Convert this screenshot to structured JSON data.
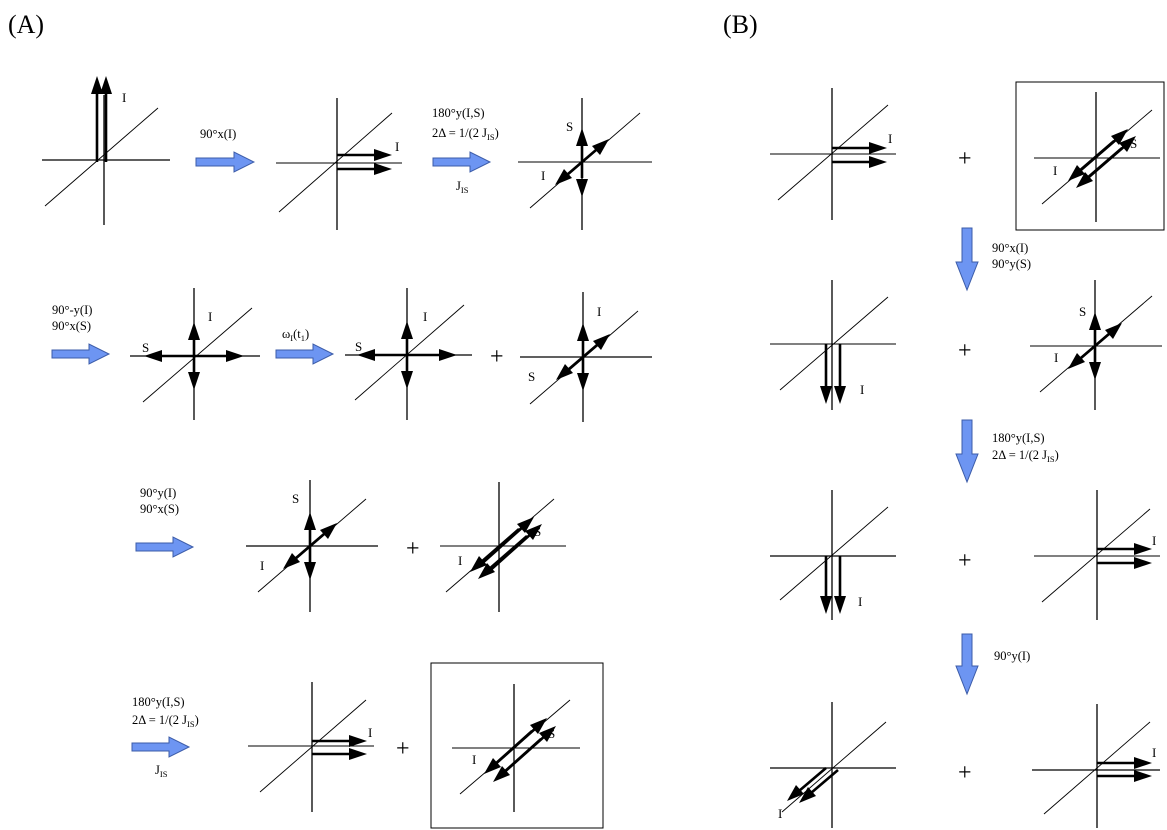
{
  "panels": {
    "a": "(A)",
    "b": "(B)"
  },
  "labels": {
    "i": "I",
    "s": "S",
    "plus": "+"
  },
  "ops": {
    "x90_i": "90°x(I)",
    "y180_is": "180°y(I,S)",
    "delay": "2Δ = 1/(2 J",
    "delay_sub": "IS",
    "delay_close": ")",
    "j": "J",
    "j_sub": "IS",
    "my90_i": "90°-y(I)",
    "x90_s": "90°x(S)",
    "omega": "ω",
    "omega_sub": "I",
    "omega_arg": "(t",
    "omega_arg_sub": "1",
    "omega_close": ")",
    "y90_i": "90°y(I)",
    "y90_s": "90°y(S)"
  },
  "colors": {
    "arrow_fill": "#6d95f2",
    "arrow_stroke": "#3c5ca8",
    "ink": "#000000"
  }
}
